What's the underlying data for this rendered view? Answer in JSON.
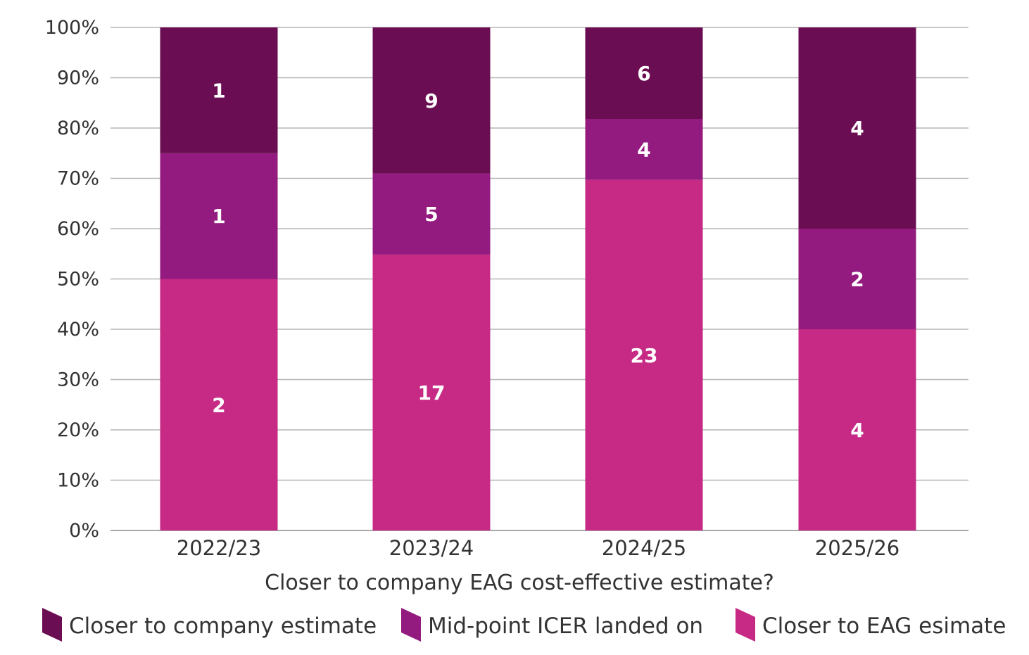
{
  "chart_data": {
    "type": "bar",
    "stacked": true,
    "normalized_percent": true,
    "categories": [
      "2022/23",
      "2023/24",
      "2024/25",
      "2025/26"
    ],
    "series": [
      {
        "name": "Closer to EAG esimate",
        "values": [
          2,
          17,
          23,
          4
        ],
        "color": "#c62a85"
      },
      {
        "name": "Mid-point ICER landed on",
        "values": [
          1,
          5,
          4,
          2
        ],
        "color": "#931a7e"
      },
      {
        "name": "Closer to company estimate",
        "values": [
          1,
          9,
          6,
          4
        ],
        "color": "#6b0d52"
      }
    ],
    "legend_order": [
      "Closer to company estimate",
      "Mid-point ICER landed on",
      "Closer to EAG esimate"
    ],
    "y_ticks": [
      "0%",
      "10%",
      "20%",
      "30%",
      "40%",
      "50%",
      "60%",
      "70%",
      "80%",
      "90%",
      "100%"
    ],
    "xlabel": "Closer to company EAG cost-effective estimate?",
    "ylabel": "",
    "ylim": [
      0,
      100
    ],
    "grid": true,
    "legend_position": "bottom"
  }
}
